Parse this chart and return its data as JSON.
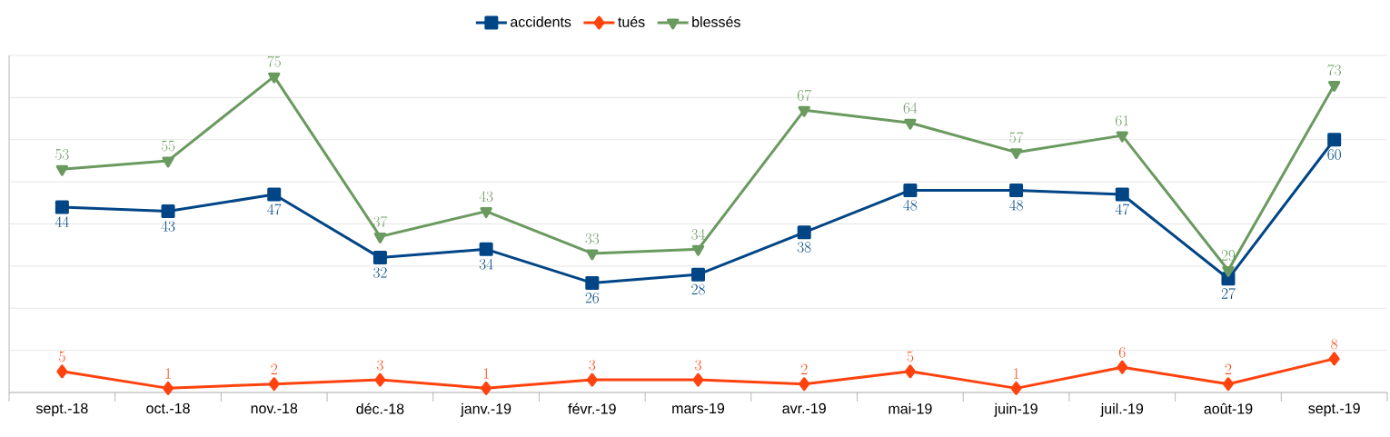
{
  "chart_data": {
    "type": "line",
    "categories": [
      "sept.-18",
      "oct.-18",
      "nov.-18",
      "déc.-18",
      "janv.-19",
      "févr.-19",
      "mars-19",
      "avr.-19",
      "mai-19",
      "juin-19",
      "juil.-19",
      "août-19",
      "sept.-19"
    ],
    "series": [
      {
        "name": "accidents",
        "color": "#004586",
        "marker": "square",
        "values": [
          44,
          43,
          47,
          32,
          34,
          26,
          28,
          38,
          48,
          48,
          47,
          27,
          60
        ]
      },
      {
        "name": "tués",
        "color": "#ff420e",
        "marker": "diamond",
        "values": [
          5,
          1,
          2,
          3,
          1,
          3,
          3,
          2,
          5,
          1,
          6,
          2,
          8
        ]
      },
      {
        "name": "blessés",
        "color": "#6a9a5f",
        "marker": "triangle",
        "values": [
          53,
          55,
          75,
          37,
          43,
          33,
          34,
          67,
          64,
          57,
          61,
          29,
          73
        ]
      }
    ],
    "ylim": [
      0,
      80
    ],
    "yticks": [
      {
        "value": 0,
        "label": null
      },
      {
        "value": 10,
        "label": null
      },
      {
        "value": 20,
        "label": null
      },
      {
        "value": 30,
        "label": null
      },
      {
        "value": 40,
        "label": null
      },
      {
        "value": 50,
        "label": null
      },
      {
        "value": 60,
        "label": null
      },
      {
        "value": 70,
        "label": null
      },
      {
        "value": 80,
        "label": null
      }
    ],
    "tick_labels": "x",
    "grid": "y",
    "legend": "top",
    "data_labels": true,
    "line_style": "solid"
  }
}
